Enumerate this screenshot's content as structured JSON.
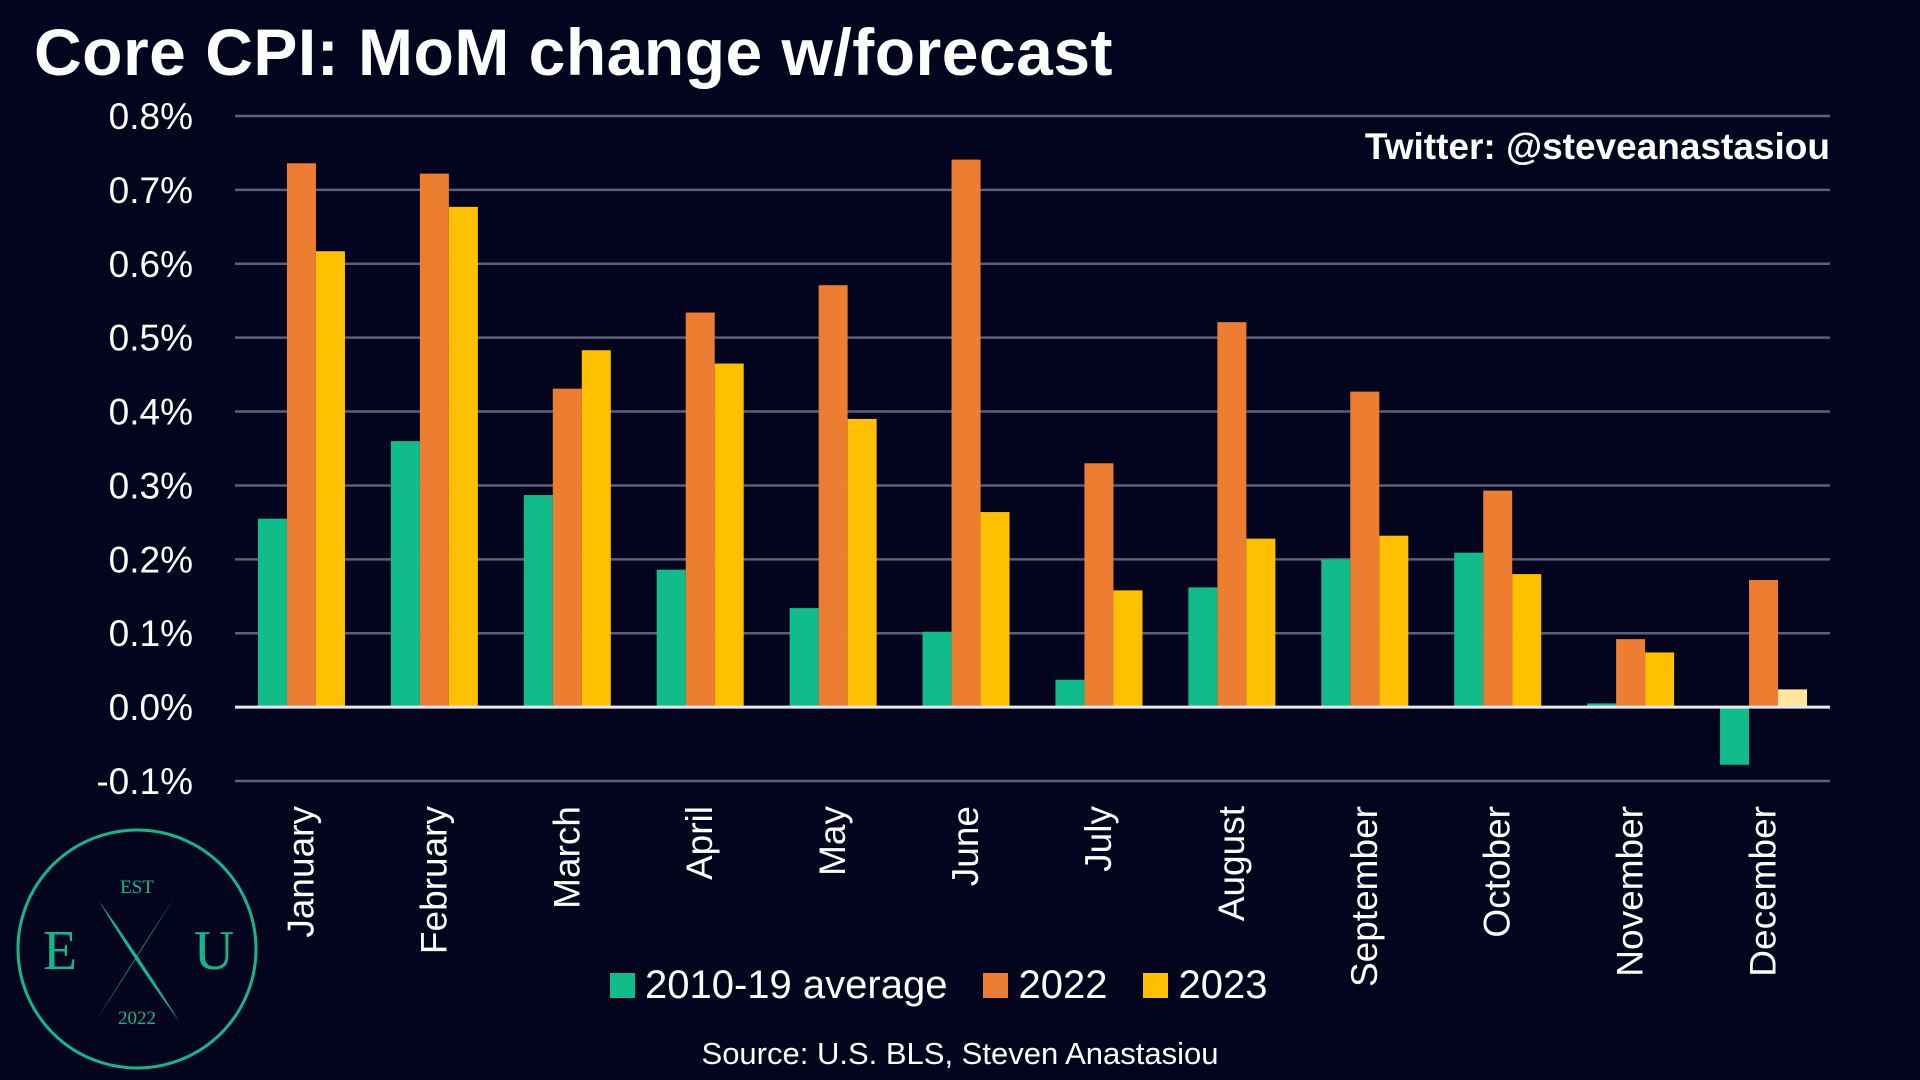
{
  "title": "Core CPI: MoM change w/forecast",
  "watermark": "Twitter: @steveanastasiou",
  "source": "Source: U.S. BLS, Steven Anastasiou",
  "logo": {
    "top_text": "EST",
    "left_letter": "E",
    "right_letter": "U",
    "bottom_text": "2022",
    "color": "#12b889"
  },
  "chart_data": {
    "type": "bar",
    "categories": [
      "January",
      "February",
      "March",
      "April",
      "May",
      "June",
      "July",
      "August",
      "September",
      "October",
      "November",
      "December"
    ],
    "series": [
      {
        "name": "2010-19 average",
        "color": "#10bc8a",
        "values": [
          0.255,
          0.36,
          0.287,
          0.186,
          0.134,
          0.102,
          0.037,
          0.162,
          0.2,
          0.209,
          0.005,
          -0.078
        ]
      },
      {
        "name": "2022",
        "color": "#ed7d31",
        "values": [
          0.736,
          0.722,
          0.431,
          0.534,
          0.571,
          0.741,
          0.33,
          0.521,
          0.427,
          0.293,
          0.092,
          0.172
        ]
      },
      {
        "name": "2023",
        "color": "#ffc000",
        "values": [
          0.617,
          0.677,
          0.483,
          0.465,
          0.39,
          0.264,
          0.158,
          0.228,
          0.232,
          0.18,
          0.074,
          0.024
        ],
        "forecast_color": "#ffe699",
        "forecast_from_index": 11
      }
    ],
    "ylim": [
      -0.1,
      0.8
    ],
    "yticks": [
      "-0.1%",
      "0.0%",
      "0.1%",
      "0.2%",
      "0.3%",
      "0.4%",
      "0.5%",
      "0.6%",
      "0.7%",
      "0.8%"
    ],
    "ytick_values": [
      -0.1,
      0.0,
      0.1,
      0.2,
      0.3,
      0.4,
      0.5,
      0.6,
      0.7,
      0.8
    ],
    "grid": true,
    "legend_position": "bottom"
  }
}
